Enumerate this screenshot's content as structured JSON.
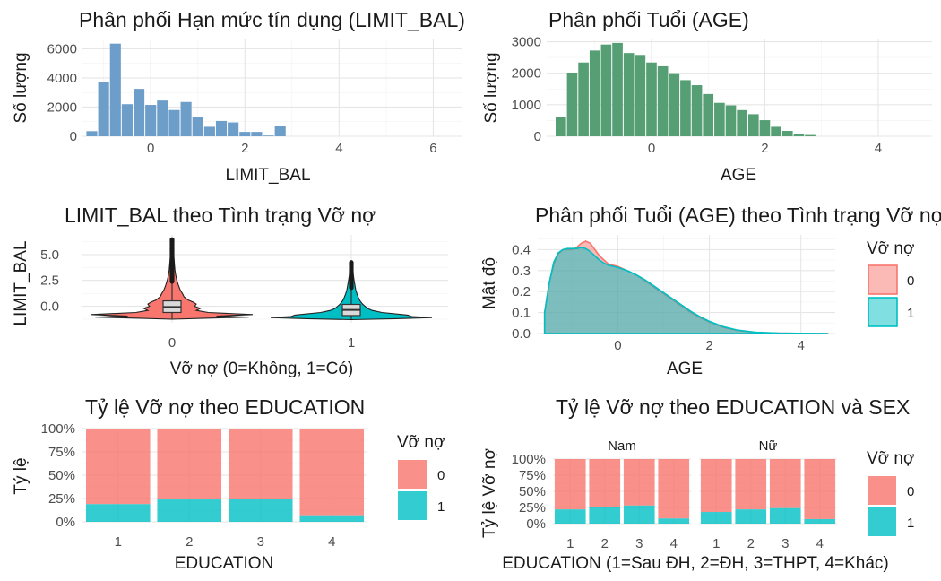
{
  "colors": {
    "limit_hist": "#6d9ec9",
    "age_hist": "#569e74",
    "default0": "#f8766d",
    "default1": "#00bfc4",
    "box_fill": "#d9d9d9",
    "box_line": "#333333"
  },
  "chart_data": [
    {
      "id": "limit_hist",
      "type": "bar",
      "title": "Phân phối Hạn mức tín dụng (LIMIT_BAL)",
      "xlabel": "LIMIT_BAL",
      "ylabel": "Số lượng",
      "xlim": [
        -1.45,
        6.6
      ],
      "ylim": [
        0,
        6700
      ],
      "xticks": [
        0,
        2,
        4,
        6
      ],
      "yticks": [
        0,
        2000,
        4000,
        6000
      ],
      "bin_width": 0.25,
      "bin_centers": [
        -1.25,
        -1.0,
        -0.75,
        -0.5,
        -0.25,
        0.0,
        0.25,
        0.5,
        0.75,
        1.0,
        1.25,
        1.5,
        1.75,
        2.0,
        2.25,
        2.5,
        2.75
      ],
      "values": [
        350,
        3700,
        6350,
        2200,
        3250,
        2150,
        2450,
        1800,
        2350,
        1300,
        650,
        1050,
        950,
        300,
        300,
        50,
        700
      ]
    },
    {
      "id": "age_hist",
      "type": "bar",
      "title": "Phân phối Tuổi (AGE)",
      "xlabel": "AGE",
      "ylabel": "Số lượng",
      "xlim": [
        -1.85,
        4.95
      ],
      "ylim": [
        0,
        3100
      ],
      "xticks": [
        0,
        2,
        4
      ],
      "yticks": [
        0,
        1000,
        2000,
        3000
      ],
      "bin_width": 0.2,
      "bin_centers": [
        -1.6,
        -1.4,
        -1.2,
        -1.0,
        -0.8,
        -0.6,
        -0.4,
        -0.2,
        0.0,
        0.2,
        0.4,
        0.6,
        0.8,
        1.0,
        1.2,
        1.4,
        1.6,
        1.8,
        2.0,
        2.2,
        2.4,
        2.6,
        2.8
      ],
      "values": [
        620,
        2020,
        2340,
        2720,
        2910,
        2960,
        2640,
        2580,
        2340,
        2220,
        2000,
        1780,
        1620,
        1340,
        1060,
        980,
        830,
        700,
        510,
        300,
        170,
        70,
        40
      ]
    },
    {
      "id": "limit_violin",
      "type": "violin",
      "title": "LIMIT_BAL theo Tình trạng Vỡ nợ",
      "xlabel": "Vỡ nợ (0=Không, 1=Có)",
      "ylabel": "LIMIT_BAL",
      "categories": [
        "0",
        "1"
      ],
      "ylim": [
        -1.6,
        6.9
      ],
      "yticks": [
        0.0,
        2.5,
        5.0
      ],
      "ytick_labels": [
        "0.0",
        "2.5",
        "5.0"
      ],
      "boxes": [
        {
          "group": "0",
          "q1": -0.6,
          "median": -0.07,
          "q3": 0.52,
          "whisker_low": -1.2,
          "whisker_high": 2.4,
          "max": 6.5
        },
        {
          "group": "1",
          "q1": -0.9,
          "median": -0.35,
          "q3": 0.18,
          "whisker_low": -1.25,
          "whisker_high": 1.8,
          "max": 4.3
        }
      ]
    },
    {
      "id": "age_density",
      "type": "area",
      "title": "Phân phối Tuổi (AGE) theo Tình trạng Vỡ nợ",
      "xlabel": "AGE",
      "ylabel": "Mật độ",
      "xlim": [
        -1.75,
        4.75
      ],
      "ylim": [
        0,
        0.47
      ],
      "xticks": [
        0,
        2,
        4
      ],
      "yticks": [
        0.0,
        0.1,
        0.2,
        0.3,
        0.4
      ],
      "ytick_labels": [
        "0.0",
        "0.1",
        "0.2",
        "0.3",
        "0.4"
      ],
      "legend_title": "Vỡ nợ",
      "legend_position": "right",
      "series": [
        {
          "name": "0",
          "x": [
            -1.6,
            -1.5,
            -1.4,
            -1.3,
            -1.2,
            -1.1,
            -1.0,
            -0.9,
            -0.8,
            -0.7,
            -0.6,
            -0.5,
            -0.4,
            -0.3,
            -0.2,
            -0.1,
            0.0,
            0.2,
            0.4,
            0.6,
            0.8,
            1.0,
            1.2,
            1.4,
            1.6,
            1.8,
            2.0,
            2.3,
            2.6,
            3.0,
            3.5,
            4.0,
            4.6
          ],
          "y": [
            0.1,
            0.24,
            0.33,
            0.38,
            0.4,
            0.4,
            0.4,
            0.41,
            0.43,
            0.44,
            0.43,
            0.4,
            0.37,
            0.35,
            0.33,
            0.325,
            0.32,
            0.3,
            0.28,
            0.25,
            0.22,
            0.19,
            0.16,
            0.13,
            0.1,
            0.075,
            0.055,
            0.03,
            0.015,
            0.005,
            0.002,
            0.001,
            0.0
          ]
        },
        {
          "name": "1",
          "x": [
            -1.6,
            -1.5,
            -1.4,
            -1.3,
            -1.2,
            -1.1,
            -1.0,
            -0.9,
            -0.8,
            -0.7,
            -0.6,
            -0.5,
            -0.4,
            -0.3,
            -0.2,
            -0.1,
            0.0,
            0.2,
            0.4,
            0.6,
            0.8,
            1.0,
            1.2,
            1.4,
            1.6,
            1.8,
            2.0,
            2.3,
            2.6,
            3.0,
            3.5,
            4.0,
            4.6
          ],
          "y": [
            0.1,
            0.24,
            0.34,
            0.385,
            0.4,
            0.405,
            0.405,
            0.405,
            0.41,
            0.405,
            0.39,
            0.37,
            0.35,
            0.335,
            0.325,
            0.32,
            0.315,
            0.3,
            0.28,
            0.255,
            0.225,
            0.195,
            0.165,
            0.135,
            0.105,
            0.08,
            0.058,
            0.033,
            0.017,
            0.006,
            0.002,
            0.001,
            0.0
          ]
        }
      ]
    },
    {
      "id": "edu_default",
      "type": "bar",
      "stacked": "percent",
      "title": "Tỷ lệ Vỡ nợ theo EDUCATION",
      "xlabel": "EDUCATION",
      "ylabel": "Tỷ lệ",
      "categories": [
        "1",
        "2",
        "3",
        "4"
      ],
      "yticks": [
        "0%",
        "25%",
        "50%",
        "75%",
        "100%"
      ],
      "legend_title": "Vỡ nợ",
      "legend_position": "right",
      "series": [
        {
          "name": "0",
          "values": [
            0.81,
            0.76,
            0.75,
            0.93
          ]
        },
        {
          "name": "1",
          "values": [
            0.19,
            0.24,
            0.25,
            0.07
          ]
        }
      ]
    },
    {
      "id": "edu_sex_default",
      "type": "bar",
      "stacked": "percent",
      "title": "Tỷ lệ Vỡ nợ theo EDUCATION và SEX",
      "xlabel": "EDUCATION (1=Sau ĐH, 2=ĐH, 3=THPT, 4=Khác)",
      "ylabel": "Tỷ lệ Vỡ nợ",
      "facets": [
        "Nam",
        "Nữ"
      ],
      "categories": [
        "1",
        "2",
        "3",
        "4"
      ],
      "yticks": [
        "0%",
        "25%",
        "50%",
        "75%",
        "100%"
      ],
      "legend_title": "Vỡ nợ",
      "legend_position": "right",
      "series_by_facet": [
        {
          "facet": "Nam",
          "default1": [
            0.22,
            0.26,
            0.28,
            0.08
          ]
        },
        {
          "facet": "Nữ",
          "default1": [
            0.18,
            0.22,
            0.24,
            0.07
          ]
        }
      ]
    }
  ],
  "legend": {
    "labels": [
      "0",
      "1"
    ]
  }
}
